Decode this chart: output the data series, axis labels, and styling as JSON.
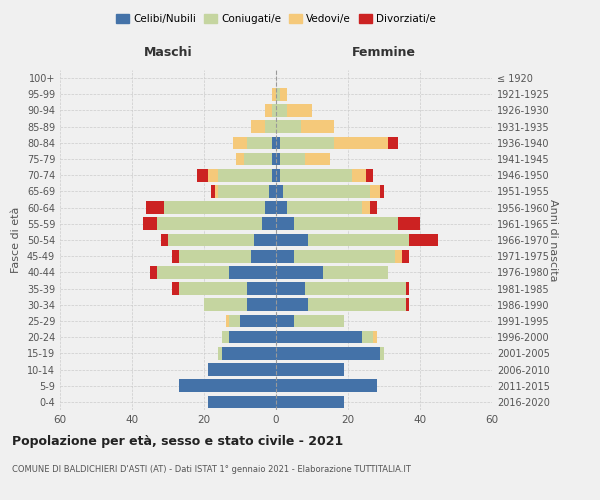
{
  "age_groups": [
    "0-4",
    "5-9",
    "10-14",
    "15-19",
    "20-24",
    "25-29",
    "30-34",
    "35-39",
    "40-44",
    "45-49",
    "50-54",
    "55-59",
    "60-64",
    "65-69",
    "70-74",
    "75-79",
    "80-84",
    "85-89",
    "90-94",
    "95-99",
    "100+"
  ],
  "birth_years": [
    "2016-2020",
    "2011-2015",
    "2006-2010",
    "2001-2005",
    "1996-2000",
    "1991-1995",
    "1986-1990",
    "1981-1985",
    "1976-1980",
    "1971-1975",
    "1966-1970",
    "1961-1965",
    "1956-1960",
    "1951-1955",
    "1946-1950",
    "1941-1945",
    "1936-1940",
    "1931-1935",
    "1926-1930",
    "1921-1925",
    "≤ 1920"
  ],
  "colors": {
    "celibi": "#4472a8",
    "coniugati": "#c5d5a0",
    "vedovi": "#f5c97a",
    "divorziati": "#cc2222"
  },
  "males": {
    "celibi": [
      19,
      27,
      19,
      15,
      13,
      10,
      8,
      8,
      13,
      7,
      6,
      4,
      3,
      2,
      1,
      1,
      1,
      0,
      0,
      0,
      0
    ],
    "coniugati": [
      0,
      0,
      0,
      1,
      2,
      3,
      12,
      19,
      20,
      20,
      24,
      29,
      28,
      14,
      15,
      8,
      7,
      3,
      1,
      0,
      0
    ],
    "vedovi": [
      0,
      0,
      0,
      0,
      0,
      1,
      0,
      0,
      0,
      0,
      0,
      0,
      0,
      1,
      3,
      2,
      4,
      4,
      2,
      1,
      0
    ],
    "divorziati": [
      0,
      0,
      0,
      0,
      0,
      0,
      0,
      2,
      2,
      2,
      2,
      4,
      5,
      1,
      3,
      0,
      0,
      0,
      0,
      0,
      0
    ]
  },
  "females": {
    "celibi": [
      19,
      28,
      19,
      29,
      24,
      5,
      9,
      8,
      13,
      5,
      9,
      5,
      3,
      2,
      1,
      1,
      1,
      0,
      0,
      0,
      0
    ],
    "coniugati": [
      0,
      0,
      0,
      1,
      3,
      14,
      27,
      28,
      18,
      28,
      28,
      29,
      21,
      24,
      20,
      7,
      15,
      7,
      3,
      1,
      0
    ],
    "vedovi": [
      0,
      0,
      0,
      0,
      1,
      0,
      0,
      0,
      0,
      2,
      0,
      0,
      2,
      3,
      4,
      7,
      15,
      9,
      7,
      2,
      0
    ],
    "divorziati": [
      0,
      0,
      0,
      0,
      0,
      0,
      1,
      1,
      0,
      2,
      8,
      6,
      2,
      1,
      2,
      0,
      3,
      0,
      0,
      0,
      0
    ]
  },
  "xlim": 60,
  "title": "Popolazione per età, sesso e stato civile - 2021",
  "subtitle": "COMUNE DI BALDICHIERI D'ASTI (AT) - Dati ISTAT 1° gennaio 2021 - Elaborazione TUTTITALIA.IT",
  "ylabel_left": "Fasce di età",
  "ylabel_right": "Anni di nascita",
  "xlabel_left": "Maschi",
  "xlabel_right": "Femmine",
  "legend_labels": [
    "Celibi/Nubili",
    "Coniugati/e",
    "Vedovi/e",
    "Divorziati/e"
  ],
  "bg_color": "#f0f0f0",
  "grid_color": "#cccccc"
}
